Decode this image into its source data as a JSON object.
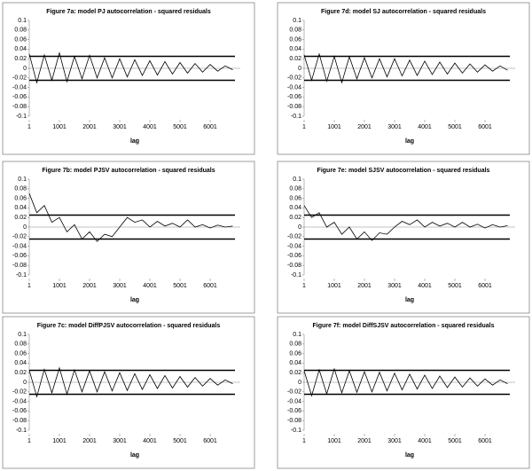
{
  "chart_data": [
    {
      "type": "line",
      "title": "Figure 7a: model PJ autocorrelation - squared residuals",
      "xlabel": "lag",
      "x": [
        1,
        251,
        501,
        751,
        1001,
        1251,
        1501,
        1751,
        2001,
        2251,
        2501,
        2751,
        3001,
        3251,
        3501,
        3751,
        4001,
        4251,
        4501,
        4751,
        5001,
        5251,
        5501,
        5751,
        6001,
        6251,
        6501,
        6751
      ],
      "values": [
        0.03,
        -0.03,
        0.028,
        -0.025,
        0.032,
        -0.028,
        0.025,
        -0.022,
        0.027,
        -0.02,
        0.022,
        -0.02,
        0.02,
        -0.018,
        0.018,
        -0.015,
        0.016,
        -0.014,
        0.014,
        -0.012,
        0.012,
        -0.01,
        0.01,
        -0.008,
        0.008,
        -0.006,
        0.005,
        -0.003
      ],
      "color": "#000000",
      "xlim": [
        1,
        7000
      ],
      "ylim": [
        -0.1,
        0.1
      ],
      "xticks": [
        1,
        1001,
        2001,
        3001,
        4001,
        5001,
        6001
      ],
      "yticks": [
        0.1,
        0.08,
        0.06,
        0.04,
        0.02,
        0,
        -0.02,
        -0.04,
        -0.06,
        -0.08,
        -0.1
      ],
      "reference_lines": [
        0.025,
        -0.025
      ]
    },
    {
      "type": "line",
      "title": "Figure 7d: model SJ autocorrelation - squared residuals",
      "xlabel": "lag",
      "x": [
        1,
        251,
        501,
        751,
        1001,
        1251,
        1501,
        1751,
        2001,
        2251,
        2501,
        2751,
        3001,
        3251,
        3501,
        3751,
        4001,
        4251,
        4501,
        4751,
        5001,
        5251,
        5501,
        5751,
        6001,
        6251,
        6501,
        6751
      ],
      "values": [
        0.028,
        -0.025,
        0.03,
        -0.027,
        0.025,
        -0.03,
        0.024,
        -0.022,
        0.022,
        -0.02,
        0.02,
        -0.018,
        0.02,
        -0.016,
        0.017,
        -0.015,
        0.015,
        -0.013,
        0.013,
        -0.012,
        0.011,
        -0.01,
        0.009,
        -0.008,
        0.007,
        -0.006,
        0.005,
        -0.004
      ],
      "color": "#000000",
      "xlim": [
        1,
        7000
      ],
      "ylim": [
        -0.1,
        0.1
      ],
      "xticks": [
        1,
        1001,
        2001,
        3001,
        4001,
        5001,
        6001
      ],
      "yticks": [
        0.1,
        0.08,
        0.06,
        0.04,
        0.02,
        0,
        -0.02,
        -0.04,
        -0.06,
        -0.08,
        -0.1
      ],
      "reference_lines": [
        0.025,
        -0.025
      ]
    },
    {
      "type": "line",
      "title": "Figure 7b: model PJSV autocorrelation - squared residuals",
      "xlabel": "lag",
      "x": [
        1,
        251,
        501,
        751,
        1001,
        1251,
        1501,
        1751,
        2001,
        2251,
        2501,
        2751,
        3001,
        3251,
        3501,
        3751,
        4001,
        4251,
        4501,
        4751,
        5001,
        5251,
        5501,
        5751,
        6001,
        6251,
        6501,
        6751
      ],
      "values": [
        0.07,
        0.03,
        0.045,
        0.01,
        0.02,
        -0.01,
        0.005,
        -0.025,
        -0.01,
        -0.03,
        -0.015,
        -0.02,
        0.0,
        0.02,
        0.01,
        0.015,
        0.0,
        0.012,
        0.002,
        0.008,
        0.0,
        0.015,
        0.0,
        0.005,
        -0.002,
        0.004,
        0.0,
        0.002
      ],
      "color": "#000000",
      "xlim": [
        1,
        7000
      ],
      "ylim": [
        -0.1,
        0.1
      ],
      "xticks": [
        1,
        1001,
        2001,
        3001,
        4001,
        5001,
        6001
      ],
      "yticks": [
        0.1,
        0.08,
        0.06,
        0.04,
        0.02,
        0,
        -0.02,
        -0.04,
        -0.06,
        -0.08,
        -0.1
      ],
      "reference_lines": [
        0.025,
        -0.025
      ]
    },
    {
      "type": "line",
      "title": "Figure 7e: model SJSV autocorrelation - squared residuals",
      "xlabel": "lag",
      "x": [
        1,
        251,
        501,
        751,
        1001,
        1251,
        1501,
        1751,
        2001,
        2251,
        2501,
        2751,
        3001,
        3251,
        3501,
        3751,
        4001,
        4251,
        4501,
        4751,
        5001,
        5251,
        5501,
        5751,
        6001,
        6251,
        6501,
        6751
      ],
      "values": [
        0.045,
        0.02,
        0.03,
        0.0,
        0.01,
        -0.015,
        0.0,
        -0.025,
        -0.01,
        -0.028,
        -0.012,
        -0.015,
        0.0,
        0.012,
        0.005,
        0.015,
        0.0,
        0.01,
        0.002,
        0.008,
        0.0,
        0.01,
        0.0,
        0.006,
        -0.002,
        0.005,
        0.0,
        0.003
      ],
      "color": "#000000",
      "xlim": [
        1,
        7000
      ],
      "ylim": [
        -0.1,
        0.1
      ],
      "xticks": [
        1,
        1001,
        2001,
        3001,
        4001,
        5001,
        6001
      ],
      "yticks": [
        0.1,
        0.08,
        0.06,
        0.04,
        0.02,
        0,
        -0.02,
        -0.04,
        -0.06,
        -0.08,
        -0.1
      ],
      "reference_lines": [
        0.025,
        -0.025
      ]
    },
    {
      "type": "line",
      "title": "Figure 7c: model DiffPJSV autocorrelation - squared residuals",
      "xlabel": "lag",
      "x": [
        1,
        251,
        501,
        751,
        1001,
        1251,
        1501,
        1751,
        2001,
        2251,
        2501,
        2751,
        3001,
        3251,
        3501,
        3751,
        4001,
        4251,
        4501,
        4751,
        5001,
        5251,
        5501,
        5751,
        6001,
        6251,
        6501,
        6751
      ],
      "values": [
        0.025,
        -0.03,
        0.027,
        -0.022,
        0.03,
        -0.025,
        0.026,
        -0.02,
        0.024,
        -0.02,
        0.022,
        -0.018,
        0.02,
        -0.017,
        0.018,
        -0.015,
        0.016,
        -0.013,
        0.014,
        -0.012,
        0.012,
        -0.01,
        0.01,
        -0.008,
        0.008,
        -0.006,
        0.005,
        -0.003
      ],
      "color": "#000000",
      "xlim": [
        1,
        7000
      ],
      "ylim": [
        -0.1,
        0.1
      ],
      "xticks": [
        1,
        1001,
        2001,
        3001,
        4001,
        5001,
        6001
      ],
      "yticks": [
        0.1,
        0.08,
        0.06,
        0.04,
        0.02,
        0,
        -0.02,
        -0.04,
        -0.06,
        -0.08,
        -0.1
      ],
      "reference_lines": [
        0.025,
        -0.025
      ]
    },
    {
      "type": "line",
      "title": "Figure 7f: model DiffSJSV autocorrelation - squared residuals",
      "xlabel": "lag",
      "x": [
        1,
        251,
        501,
        751,
        1001,
        1251,
        1501,
        1751,
        2001,
        2251,
        2501,
        2751,
        3001,
        3251,
        3501,
        3751,
        4001,
        4251,
        4501,
        4751,
        5001,
        5251,
        5501,
        5751,
        6001,
        6251,
        6501,
        6751
      ],
      "values": [
        0.024,
        -0.028,
        0.026,
        -0.024,
        0.028,
        -0.022,
        0.024,
        -0.021,
        0.022,
        -0.02,
        0.021,
        -0.018,
        0.019,
        -0.016,
        0.017,
        -0.014,
        0.015,
        -0.013,
        0.013,
        -0.011,
        0.011,
        -0.01,
        0.009,
        -0.008,
        0.007,
        -0.006,
        0.005,
        -0.003
      ],
      "color": "#000000",
      "xlim": [
        1,
        7000
      ],
      "ylim": [
        -0.1,
        0.1
      ],
      "xticks": [
        1,
        1001,
        2001,
        3001,
        4001,
        5001,
        6001
      ],
      "yticks": [
        0.1,
        0.08,
        0.06,
        0.04,
        0.02,
        0,
        -0.02,
        -0.04,
        -0.06,
        -0.08,
        -0.1
      ],
      "reference_lines": [
        0.025,
        -0.025
      ]
    }
  ]
}
